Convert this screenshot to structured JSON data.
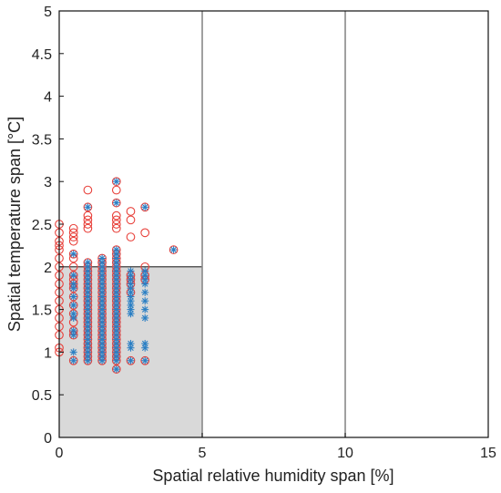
{
  "chart_data": {
    "type": "scatter",
    "title": "",
    "xlabel": "Spatial relative humidity span [%]",
    "ylabel": "Spatial temperature span [°C]",
    "xlim": [
      0,
      15
    ],
    "ylim": [
      0,
      5
    ],
    "x_ticks": [
      "0",
      "5",
      "10",
      "15"
    ],
    "y_ticks": [
      "0",
      "0.5",
      "1",
      "1.5",
      "2",
      "2.5",
      "3",
      "3.5",
      "4",
      "4.5",
      "5"
    ],
    "grid": "vertical at x = 5 and x = 10",
    "shaded_region": {
      "x": [
        0,
        5
      ],
      "y": [
        0,
        2
      ],
      "color": "#d9d9d9"
    },
    "colors": {
      "circle_series": "#e8403a",
      "star_series": "#2a7fc4"
    },
    "series": [
      {
        "marker": "circle",
        "points": [
          [
            0,
            1.0
          ],
          [
            0,
            1.05
          ],
          [
            0,
            1.2
          ],
          [
            0,
            1.3
          ],
          [
            0,
            1.4
          ],
          [
            0,
            1.5
          ],
          [
            0,
            1.6
          ],
          [
            0,
            1.7
          ],
          [
            0,
            1.8
          ],
          [
            0,
            1.9
          ],
          [
            0,
            2.0
          ],
          [
            0,
            2.1
          ],
          [
            0,
            2.2
          ],
          [
            0,
            2.25
          ],
          [
            0,
            2.3
          ],
          [
            0,
            2.4
          ],
          [
            0,
            2.5
          ],
          [
            0.5,
            0.9
          ],
          [
            0.5,
            1.2
          ],
          [
            0.5,
            1.25
          ],
          [
            0.5,
            1.35
          ],
          [
            0.5,
            1.45
          ],
          [
            0.5,
            1.55
          ],
          [
            0.5,
            1.65
          ],
          [
            0.5,
            1.75
          ],
          [
            0.5,
            1.8
          ],
          [
            0.5,
            1.85
          ],
          [
            0.5,
            1.9
          ],
          [
            0.5,
            2.0
          ],
          [
            0.5,
            2.1
          ],
          [
            0.5,
            2.15
          ],
          [
            0.5,
            2.3
          ],
          [
            0.5,
            2.35
          ],
          [
            0.5,
            2.4
          ],
          [
            0.5,
            2.45
          ],
          [
            1,
            0.9
          ],
          [
            1,
            0.95
          ],
          [
            1,
            1.0
          ],
          [
            1,
            1.05
          ],
          [
            1,
            1.1
          ],
          [
            1,
            1.15
          ],
          [
            1,
            1.2
          ],
          [
            1,
            1.25
          ],
          [
            1,
            1.3
          ],
          [
            1,
            1.35
          ],
          [
            1,
            1.4
          ],
          [
            1,
            1.45
          ],
          [
            1,
            1.5
          ],
          [
            1,
            1.55
          ],
          [
            1,
            1.6
          ],
          [
            1,
            1.65
          ],
          [
            1,
            1.7
          ],
          [
            1,
            1.75
          ],
          [
            1,
            1.8
          ],
          [
            1,
            1.85
          ],
          [
            1,
            1.9
          ],
          [
            1,
            1.95
          ],
          [
            1,
            2.0
          ],
          [
            1,
            2.05
          ],
          [
            1,
            2.45
          ],
          [
            1,
            2.5
          ],
          [
            1,
            2.55
          ],
          [
            1,
            2.6
          ],
          [
            1,
            2.7
          ],
          [
            1,
            2.9
          ],
          [
            1.5,
            0.9
          ],
          [
            1.5,
            0.95
          ],
          [
            1.5,
            1.0
          ],
          [
            1.5,
            1.05
          ],
          [
            1.5,
            1.1
          ],
          [
            1.5,
            1.15
          ],
          [
            1.5,
            1.2
          ],
          [
            1.5,
            1.25
          ],
          [
            1.5,
            1.3
          ],
          [
            1.5,
            1.35
          ],
          [
            1.5,
            1.4
          ],
          [
            1.5,
            1.45
          ],
          [
            1.5,
            1.5
          ],
          [
            1.5,
            1.55
          ],
          [
            1.5,
            1.6
          ],
          [
            1.5,
            1.65
          ],
          [
            1.5,
            1.7
          ],
          [
            1.5,
            1.75
          ],
          [
            1.5,
            1.8
          ],
          [
            1.5,
            1.85
          ],
          [
            1.5,
            1.9
          ],
          [
            1.5,
            1.95
          ],
          [
            1.5,
            2.0
          ],
          [
            1.5,
            2.05
          ],
          [
            1.5,
            2.1
          ],
          [
            2,
            0.8
          ],
          [
            2,
            0.9
          ],
          [
            2,
            0.95
          ],
          [
            2,
            1.0
          ],
          [
            2,
            1.05
          ],
          [
            2,
            1.1
          ],
          [
            2,
            1.15
          ],
          [
            2,
            1.2
          ],
          [
            2,
            1.25
          ],
          [
            2,
            1.3
          ],
          [
            2,
            1.35
          ],
          [
            2,
            1.4
          ],
          [
            2,
            1.45
          ],
          [
            2,
            1.5
          ],
          [
            2,
            1.55
          ],
          [
            2,
            1.6
          ],
          [
            2,
            1.65
          ],
          [
            2,
            1.7
          ],
          [
            2,
            1.75
          ],
          [
            2,
            1.8
          ],
          [
            2,
            1.85
          ],
          [
            2,
            1.9
          ],
          [
            2,
            1.95
          ],
          [
            2,
            2.0
          ],
          [
            2,
            2.05
          ],
          [
            2,
            2.1
          ],
          [
            2,
            2.15
          ],
          [
            2,
            2.2
          ],
          [
            2,
            2.45
          ],
          [
            2,
            2.5
          ],
          [
            2,
            2.55
          ],
          [
            2,
            2.6
          ],
          [
            2,
            2.75
          ],
          [
            2,
            2.9
          ],
          [
            2,
            3.0
          ],
          [
            2.5,
            0.9
          ],
          [
            2.5,
            1.7
          ],
          [
            2.5,
            1.8
          ],
          [
            2.5,
            1.85
          ],
          [
            2.5,
            1.9
          ],
          [
            2.5,
            2.35
          ],
          [
            2.5,
            2.55
          ],
          [
            2.5,
            2.65
          ],
          [
            3,
            0.9
          ],
          [
            3,
            1.85
          ],
          [
            3,
            1.9
          ],
          [
            3,
            2.0
          ],
          [
            3,
            2.4
          ],
          [
            3,
            2.7
          ],
          [
            4,
            2.2
          ]
        ]
      },
      {
        "marker": "star",
        "points": [
          [
            0.5,
            0.9
          ],
          [
            0.5,
            1.0
          ],
          [
            0.5,
            1.2
          ],
          [
            0.5,
            1.25
          ],
          [
            0.5,
            1.4
          ],
          [
            0.5,
            1.45
          ],
          [
            0.5,
            1.55
          ],
          [
            0.5,
            1.65
          ],
          [
            0.5,
            1.75
          ],
          [
            0.5,
            1.8
          ],
          [
            0.5,
            1.9
          ],
          [
            0.5,
            2.15
          ],
          [
            1,
            0.9
          ],
          [
            1,
            0.95
          ],
          [
            1,
            1.0
          ],
          [
            1,
            1.05
          ],
          [
            1,
            1.1
          ],
          [
            1,
            1.15
          ],
          [
            1,
            1.2
          ],
          [
            1,
            1.25
          ],
          [
            1,
            1.3
          ],
          [
            1,
            1.35
          ],
          [
            1,
            1.4
          ],
          [
            1,
            1.45
          ],
          [
            1,
            1.5
          ],
          [
            1,
            1.55
          ],
          [
            1,
            1.6
          ],
          [
            1,
            1.65
          ],
          [
            1,
            1.7
          ],
          [
            1,
            1.75
          ],
          [
            1,
            1.8
          ],
          [
            1,
            1.85
          ],
          [
            1,
            1.9
          ],
          [
            1,
            1.95
          ],
          [
            1,
            2.0
          ],
          [
            1,
            2.05
          ],
          [
            1,
            2.7
          ],
          [
            1.5,
            0.9
          ],
          [
            1.5,
            0.95
          ],
          [
            1.5,
            1.0
          ],
          [
            1.5,
            1.05
          ],
          [
            1.5,
            1.1
          ],
          [
            1.5,
            1.15
          ],
          [
            1.5,
            1.2
          ],
          [
            1.5,
            1.25
          ],
          [
            1.5,
            1.3
          ],
          [
            1.5,
            1.35
          ],
          [
            1.5,
            1.4
          ],
          [
            1.5,
            1.45
          ],
          [
            1.5,
            1.5
          ],
          [
            1.5,
            1.55
          ],
          [
            1.5,
            1.6
          ],
          [
            1.5,
            1.65
          ],
          [
            1.5,
            1.7
          ],
          [
            1.5,
            1.75
          ],
          [
            1.5,
            1.8
          ],
          [
            1.5,
            1.85
          ],
          [
            1.5,
            1.9
          ],
          [
            1.5,
            1.95
          ],
          [
            1.5,
            2.0
          ],
          [
            1.5,
            2.05
          ],
          [
            1.5,
            2.1
          ],
          [
            2,
            0.8
          ],
          [
            2,
            0.9
          ],
          [
            2,
            0.95
          ],
          [
            2,
            1.0
          ],
          [
            2,
            1.05
          ],
          [
            2,
            1.1
          ],
          [
            2,
            1.15
          ],
          [
            2,
            1.2
          ],
          [
            2,
            1.25
          ],
          [
            2,
            1.3
          ],
          [
            2,
            1.35
          ],
          [
            2,
            1.4
          ],
          [
            2,
            1.45
          ],
          [
            2,
            1.5
          ],
          [
            2,
            1.55
          ],
          [
            2,
            1.6
          ],
          [
            2,
            1.65
          ],
          [
            2,
            1.7
          ],
          [
            2,
            1.75
          ],
          [
            2,
            1.8
          ],
          [
            2,
            1.85
          ],
          [
            2,
            1.9
          ],
          [
            2,
            1.95
          ],
          [
            2,
            2.0
          ],
          [
            2,
            2.05
          ],
          [
            2,
            2.1
          ],
          [
            2,
            2.15
          ],
          [
            2,
            2.2
          ],
          [
            2,
            2.75
          ],
          [
            2,
            3.0
          ],
          [
            2.5,
            0.9
          ],
          [
            2.5,
            1.05
          ],
          [
            2.5,
            1.1
          ],
          [
            2.5,
            1.45
          ],
          [
            2.5,
            1.5
          ],
          [
            2.5,
            1.55
          ],
          [
            2.5,
            1.6
          ],
          [
            2.5,
            1.65
          ],
          [
            2.5,
            1.7
          ],
          [
            2.5,
            1.75
          ],
          [
            2.5,
            1.8
          ],
          [
            2.5,
            1.85
          ],
          [
            2.5,
            1.9
          ],
          [
            2.5,
            1.95
          ],
          [
            3,
            0.9
          ],
          [
            3,
            1.05
          ],
          [
            3,
            1.1
          ],
          [
            3,
            1.4
          ],
          [
            3,
            1.5
          ],
          [
            3,
            1.6
          ],
          [
            3,
            1.7
          ],
          [
            3,
            1.8
          ],
          [
            3,
            1.85
          ],
          [
            3,
            1.9
          ],
          [
            3,
            1.95
          ],
          [
            3,
            2.7
          ],
          [
            4,
            2.2
          ]
        ]
      }
    ]
  }
}
